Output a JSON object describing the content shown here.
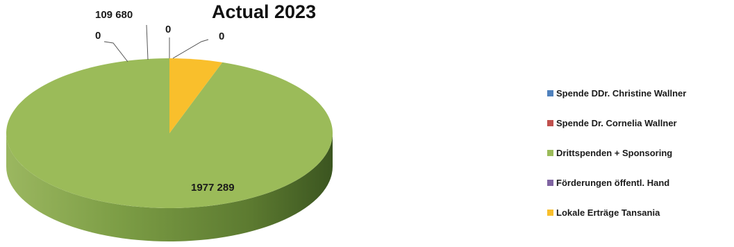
{
  "chart_data": {
    "type": "pie",
    "title": "Actual 2023",
    "style": "3d",
    "categories": [
      "Spende DDr. Christine Wallner",
      "Spende Dr. Cornelia Wallner",
      "Drittspenden + Sponsoring",
      "Förderungen öffentl. Hand",
      "Lokale Erträge Tansania"
    ],
    "values": [
      0,
      0,
      1977289,
      0,
      109680
    ],
    "value_labels": [
      "0",
      "0",
      "1977 289",
      "0",
      "109 680"
    ],
    "colors": [
      "#4f81bd",
      "#c0504d",
      "#9bbb59",
      "#8064a2",
      "#f9bf2c"
    ],
    "legend_position": "right"
  }
}
